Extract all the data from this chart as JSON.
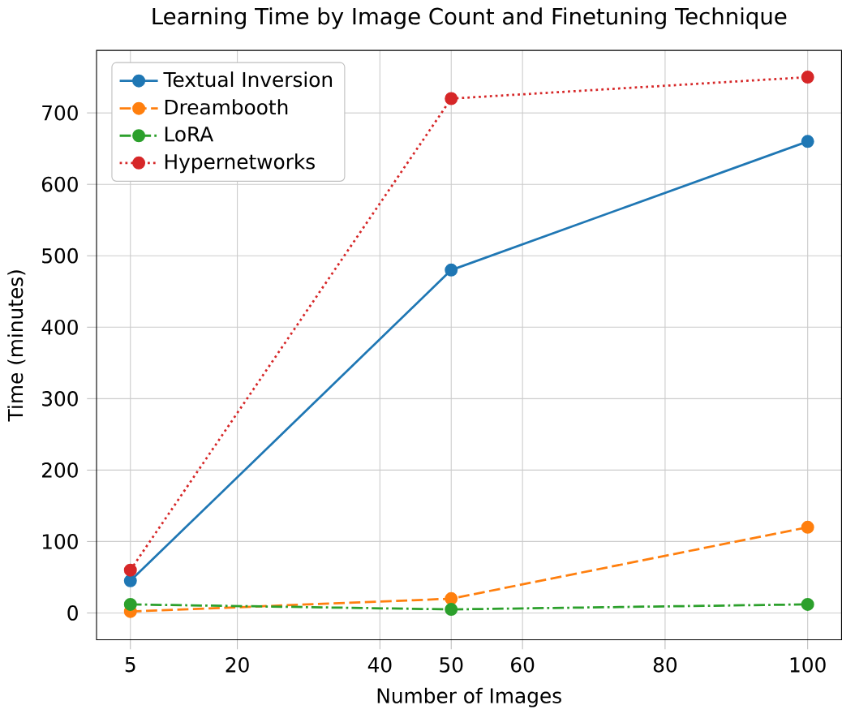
{
  "chart_data": {
    "type": "line",
    "title": "Learning Time by Image Count and Finetuning Technique",
    "xlabel": "Number of Images",
    "ylabel": "Time (minutes)",
    "x": [
      5,
      50,
      100
    ],
    "series": [
      {
        "name": "Textual Inversion",
        "color": "#1f77b4",
        "values": [
          45,
          480,
          660
        ],
        "line_style": "solid"
      },
      {
        "name": "Dreambooth",
        "color": "#ff7f0e",
        "values": [
          2,
          20,
          120
        ],
        "line_style": "dashed"
      },
      {
        "name": "LoRA",
        "color": "#2ca02c",
        "values": [
          12,
          5,
          12
        ],
        "line_style": "dashdot"
      },
      {
        "name": "Hypernetworks",
        "color": "#d62728",
        "values": [
          60,
          720,
          750
        ],
        "line_style": "dotted"
      }
    ],
    "xlim": [
      0.25,
      104.75
    ],
    "ylim": [
      -37.5,
      787.5
    ],
    "xticks": [
      5,
      20,
      40,
      50,
      60,
      80,
      100
    ],
    "yticks": [
      0,
      100,
      200,
      300,
      400,
      500,
      600,
      700
    ],
    "grid": true,
    "legend": "top left",
    "marker": "circle"
  }
}
